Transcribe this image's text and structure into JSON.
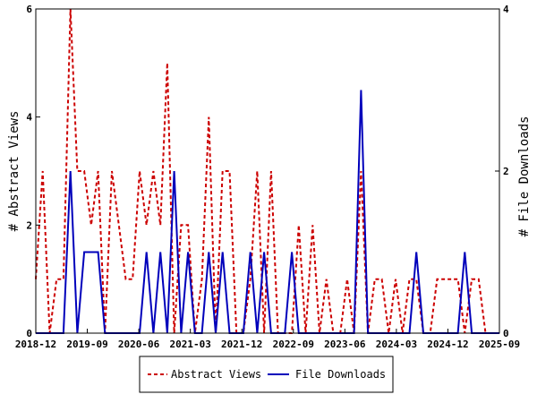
{
  "chart_data": {
    "type": "line",
    "x_ticks": [
      "2018-12",
      "2019-09",
      "2020-06",
      "2021-03",
      "2021-12",
      "2022-09",
      "2023-06",
      "2024-03",
      "2024-12",
      "2025-09"
    ],
    "y_left": {
      "label": "# Abstract Views",
      "ticks": [
        "0",
        "2",
        "4",
        "6"
      ],
      "lim": [
        0,
        6
      ]
    },
    "y_right": {
      "label": "# File Downloads",
      "ticks": [
        "0",
        "2",
        "4"
      ],
      "lim": [
        0,
        4
      ]
    },
    "legend": {
      "position": "bottom"
    },
    "grid": false,
    "series": [
      {
        "name": "Abstract Views",
        "axis": "left",
        "color": "#cc0000",
        "style": "dashed",
        "values": [
          1,
          3,
          0,
          1,
          1,
          6,
          3,
          3,
          2,
          3,
          0,
          3,
          2,
          1,
          1,
          3,
          2,
          3,
          2,
          5,
          0,
          2,
          2,
          0,
          1,
          4,
          0,
          3,
          3,
          0,
          0,
          1,
          3,
          0,
          3,
          0,
          0,
          0,
          2,
          0,
          2,
          0,
          1,
          0,
          0,
          1,
          0,
          3,
          0,
          1,
          1,
          0,
          1,
          0,
          1,
          1,
          0,
          0,
          1,
          1,
          1,
          1,
          0,
          1,
          1,
          0,
          0,
          0
        ]
      },
      {
        "name": "File Downloads",
        "axis": "right",
        "color": "#0000bb",
        "style": "solid",
        "values": [
          0,
          0,
          0,
          0,
          0,
          2,
          0,
          1,
          1,
          1,
          0,
          0,
          0,
          0,
          0,
          0,
          1,
          0,
          1,
          0,
          2,
          0,
          1,
          0,
          0,
          1,
          0,
          1,
          0,
          0,
          0,
          1,
          0,
          1,
          0,
          0,
          0,
          1,
          0,
          0,
          0,
          0,
          0,
          0,
          0,
          0,
          0,
          3,
          0,
          0,
          0,
          0,
          0,
          0,
          0,
          1,
          0,
          0,
          0,
          0,
          0,
          0,
          1,
          0,
          0,
          0,
          0,
          0
        ]
      }
    ]
  }
}
